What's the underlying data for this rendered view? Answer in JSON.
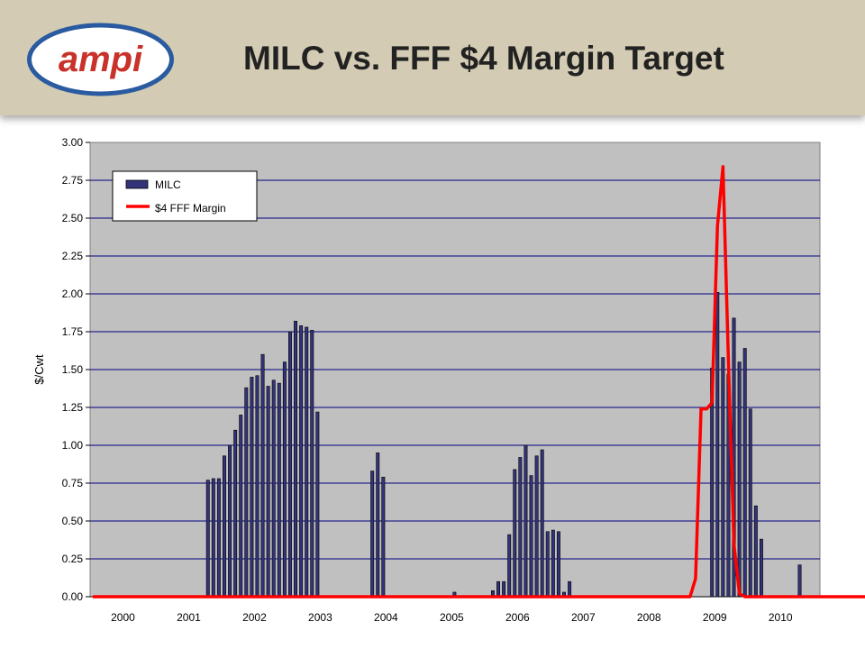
{
  "header": {
    "logo_text": "ampi",
    "title": "MILC vs. FFF $4 Margin Target",
    "background": "#d3cbb3"
  },
  "chart_data": {
    "type": "bar",
    "title": "MILC vs. FFF $4 Margin Target",
    "xlabel": "",
    "ylabel": "$/Cwt",
    "ylim": [
      0,
      3.0
    ],
    "yticks": [
      "0.00",
      "0.25",
      "0.50",
      "0.75",
      "1.00",
      "1.25",
      "1.50",
      "1.75",
      "2.00",
      "2.25",
      "2.50",
      "2.75",
      "3.00"
    ],
    "xticks": [
      "2000",
      "2001",
      "2002",
      "2003",
      "2004",
      "2005",
      "2006",
      "2007",
      "2008",
      "2009",
      "2010"
    ],
    "grid": true,
    "legend_position": "top-left",
    "plot_background": "#c0c0c0",
    "series": [
      {
        "name": "MILC",
        "kind": "bar",
        "color": "#33337a",
        "values": [
          0,
          0,
          0,
          0,
          0,
          0,
          0,
          0,
          0,
          0,
          0,
          0,
          0,
          0,
          0,
          0,
          0,
          0,
          0,
          0,
          0,
          0.77,
          0.78,
          0.78,
          0.93,
          1.0,
          1.1,
          1.2,
          1.38,
          1.45,
          1.46,
          1.6,
          1.39,
          1.43,
          1.41,
          1.55,
          1.75,
          1.82,
          1.79,
          1.78,
          1.76,
          1.22,
          0,
          0,
          0,
          0,
          0,
          0,
          0,
          0,
          0,
          0.83,
          0.95,
          0.79,
          0,
          0,
          0,
          0,
          0,
          0,
          0,
          0,
          0,
          0,
          0,
          0,
          0.03,
          0,
          0,
          0,
          0,
          0,
          0,
          0.04,
          0.1,
          0.1,
          0.41,
          0.84,
          0.92,
          1.0,
          0.8,
          0.93,
          0.97,
          0.43,
          0.44,
          0.43,
          0.03,
          0.1,
          0,
          0,
          0,
          0,
          0,
          0,
          0,
          0,
          0,
          0,
          0,
          0,
          0,
          0,
          0,
          0,
          0,
          0,
          0,
          0,
          0,
          0,
          0,
          0,
          0,
          1.51,
          2.01,
          1.58,
          1.47,
          1.84,
          1.55,
          1.64,
          1.24,
          0.6,
          0.38,
          0,
          0,
          0,
          0,
          0,
          0,
          0.21,
          0,
          0,
          0,
          0,
          0,
          0,
          0,
          0,
          0,
          0,
          0,
          0,
          0,
          0
        ]
      },
      {
        "name": "$4 FFF Margin",
        "kind": "line",
        "color": "#ff0000",
        "values": [
          0,
          0,
          0,
          0,
          0,
          0,
          0,
          0,
          0,
          0,
          0,
          0,
          0,
          0,
          0,
          0,
          0,
          0,
          0,
          0,
          0,
          0,
          0,
          0,
          0,
          0,
          0,
          0,
          0,
          0,
          0,
          0,
          0,
          0,
          0,
          0,
          0,
          0,
          0,
          0,
          0,
          0,
          0,
          0,
          0,
          0,
          0,
          0,
          0,
          0,
          0,
          0,
          0,
          0,
          0,
          0,
          0,
          0,
          0,
          0,
          0,
          0,
          0,
          0,
          0,
          0,
          0,
          0,
          0,
          0,
          0,
          0,
          0,
          0,
          0,
          0,
          0,
          0,
          0,
          0,
          0,
          0,
          0,
          0,
          0,
          0,
          0,
          0,
          0,
          0,
          0,
          0,
          0,
          0,
          0,
          0,
          0,
          0,
          0,
          0,
          0,
          0,
          0,
          0,
          0,
          0,
          0,
          0,
          0,
          0,
          0.12,
          1.24,
          1.24,
          1.28,
          2.45,
          2.84,
          1.55,
          0.35,
          0.02,
          0,
          0,
          0,
          0,
          0,
          0,
          0,
          0,
          0,
          0,
          0,
          0,
          0,
          0,
          0,
          0,
          0,
          0,
          0,
          0,
          0,
          0,
          0,
          0,
          0
        ]
      }
    ]
  }
}
